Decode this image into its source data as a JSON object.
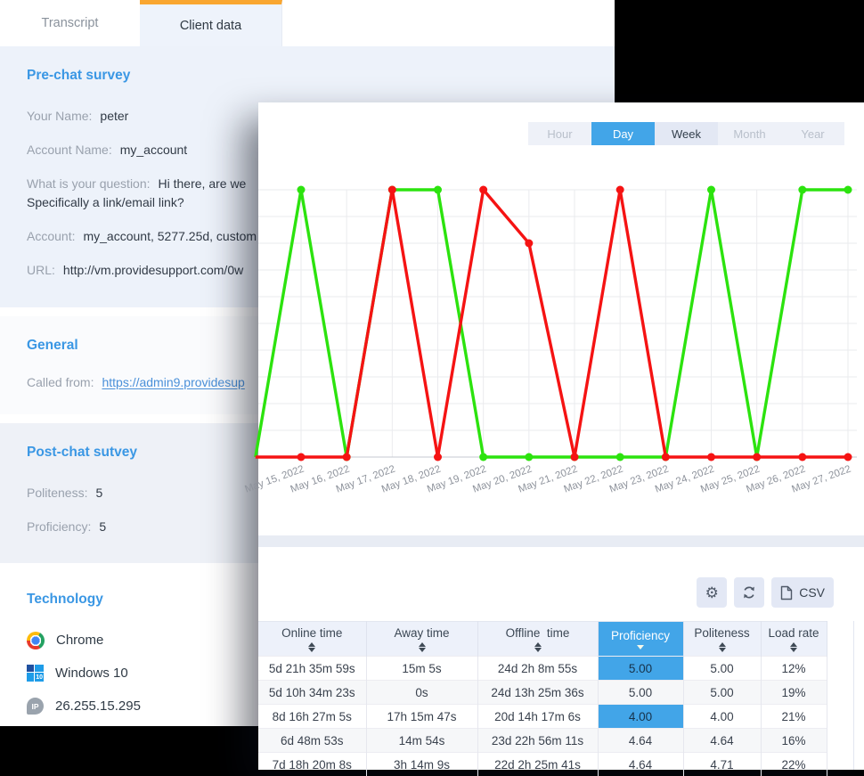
{
  "window_left": {
    "tabs": [
      {
        "id": "transcript",
        "label": "Transcript",
        "active": false
      },
      {
        "id": "client-data",
        "label": "Client data",
        "active": true
      }
    ],
    "sections": [
      {
        "id": "pre-chat",
        "title": "Pre-chat survey",
        "tone": "blue1",
        "collapsible": true,
        "fields": [
          {
            "label": "Your Name:",
            "value": "peter"
          },
          {
            "label": "Account Name:",
            "value": "my_account"
          },
          {
            "label": "What is your question:",
            "value": "Hi there, are we\nSpecifically a link/email link?",
            "wrap": true
          },
          {
            "label": "Account:",
            "value": "my_account, 5277.25d, custom"
          },
          {
            "label": "URL:",
            "value": "http://vm.providesupport.com/0w"
          }
        ]
      },
      {
        "id": "general",
        "title": "General",
        "tone": "white",
        "fields": [
          {
            "label": "Called from:",
            "value": "https://admin9.providesup",
            "link": true
          }
        ]
      },
      {
        "id": "post-chat",
        "title": "Post-chat sutvey",
        "tone": "blue2",
        "fields": [
          {
            "label": "Politeness:",
            "value": "5"
          },
          {
            "label": "Proficiency:",
            "value": "5"
          }
        ]
      },
      {
        "id": "technology",
        "title": "Technology",
        "tone": "plain",
        "items": [
          {
            "icon": "chrome-icon",
            "label": "Chrome"
          },
          {
            "icon": "windows-icon",
            "label": "Windows 10"
          },
          {
            "icon": "ip-icon",
            "label": "26.255.15.295"
          }
        ]
      }
    ]
  },
  "reports_window": {
    "range_tabs": [
      {
        "label": "Hour",
        "state": "muted"
      },
      {
        "label": "Day",
        "state": "active"
      },
      {
        "label": "Week",
        "state": "normal"
      },
      {
        "label": "Month",
        "state": "muted"
      },
      {
        "label": "Year",
        "state": "muted"
      }
    ],
    "toolbar": {
      "buttons": [
        {
          "icon": "settings-icon"
        },
        {
          "icon": "refresh-icon"
        },
        {
          "icon": "csv-file-icon",
          "label": "CSV"
        }
      ]
    },
    "table": {
      "columns": [
        {
          "label": "Online time",
          "sortable": true
        },
        {
          "label": "Away time",
          "sortable": true
        },
        {
          "label": "Offline  time",
          "sortable": true
        },
        {
          "label": "Proficiency",
          "sortable": true,
          "active": true,
          "sort": "desc"
        },
        {
          "label": "Politeness",
          "sortable": true
        },
        {
          "label": "Load rate",
          "sortable": true
        }
      ],
      "rows": [
        [
          "5d 21h 35m 59s",
          "15m 5s",
          "24d 2h 8m 55s",
          "5.00",
          "5.00",
          "12%"
        ],
        [
          "5d 10h 34m 23s",
          "0s",
          "24d 13h 25m 36s",
          "5.00",
          "5.00",
          "19%"
        ],
        [
          "8d 16h 27m 5s",
          "17h 15m 47s",
          "20d 14h 17m 6s",
          "4.00",
          "4.00",
          "21%"
        ],
        [
          "6d 48m 53s",
          "14m 54s",
          "23d 22h 56m 11s",
          "4.64",
          "4.64",
          "16%"
        ],
        [
          "7d 18h 20m 8s",
          "3h 14m 9s",
          "22d 2h 25m 41s",
          "4.64",
          "4.71",
          "22%"
        ]
      ],
      "highlighted_cells": [
        [
          0,
          3
        ],
        [
          2,
          3
        ]
      ]
    }
  },
  "chart_data": {
    "type": "line",
    "categories": [
      "May 15, 2022",
      "May 16, 2022",
      "May 17, 2022",
      "May 18, 2022",
      "May 19, 2022",
      "May 20, 2022",
      "May 21, 2022",
      "May 22, 2022",
      "May 23, 2022",
      "May 24, 2022",
      "May 25, 2022",
      "May 26, 2022",
      "May 27, 2022"
    ],
    "series": [
      {
        "name": "green-series",
        "color": "#2ce30e",
        "values": [
          100,
          0,
          100,
          100,
          0,
          0,
          0,
          0,
          0,
          100,
          0,
          100,
          100
        ]
      },
      {
        "name": "red-series",
        "color": "#f51313",
        "values": [
          0,
          0,
          100,
          0,
          100,
          80,
          0,
          100,
          0,
          0,
          0,
          0,
          0
        ]
      }
    ],
    "ylim": [
      0,
      100
    ],
    "grid": true,
    "y_axis_labels_visible": false,
    "x_label_rotation": -20,
    "lead_in_from_offscreen_left": true,
    "legend": "none"
  },
  "colors": {
    "accent_orange": "#f9a630",
    "accent_blue": "#42a5e8",
    "line_green": "#2ce30e",
    "line_red": "#f51313",
    "link": "#4a90d9",
    "section_title": "#3a97e4"
  }
}
